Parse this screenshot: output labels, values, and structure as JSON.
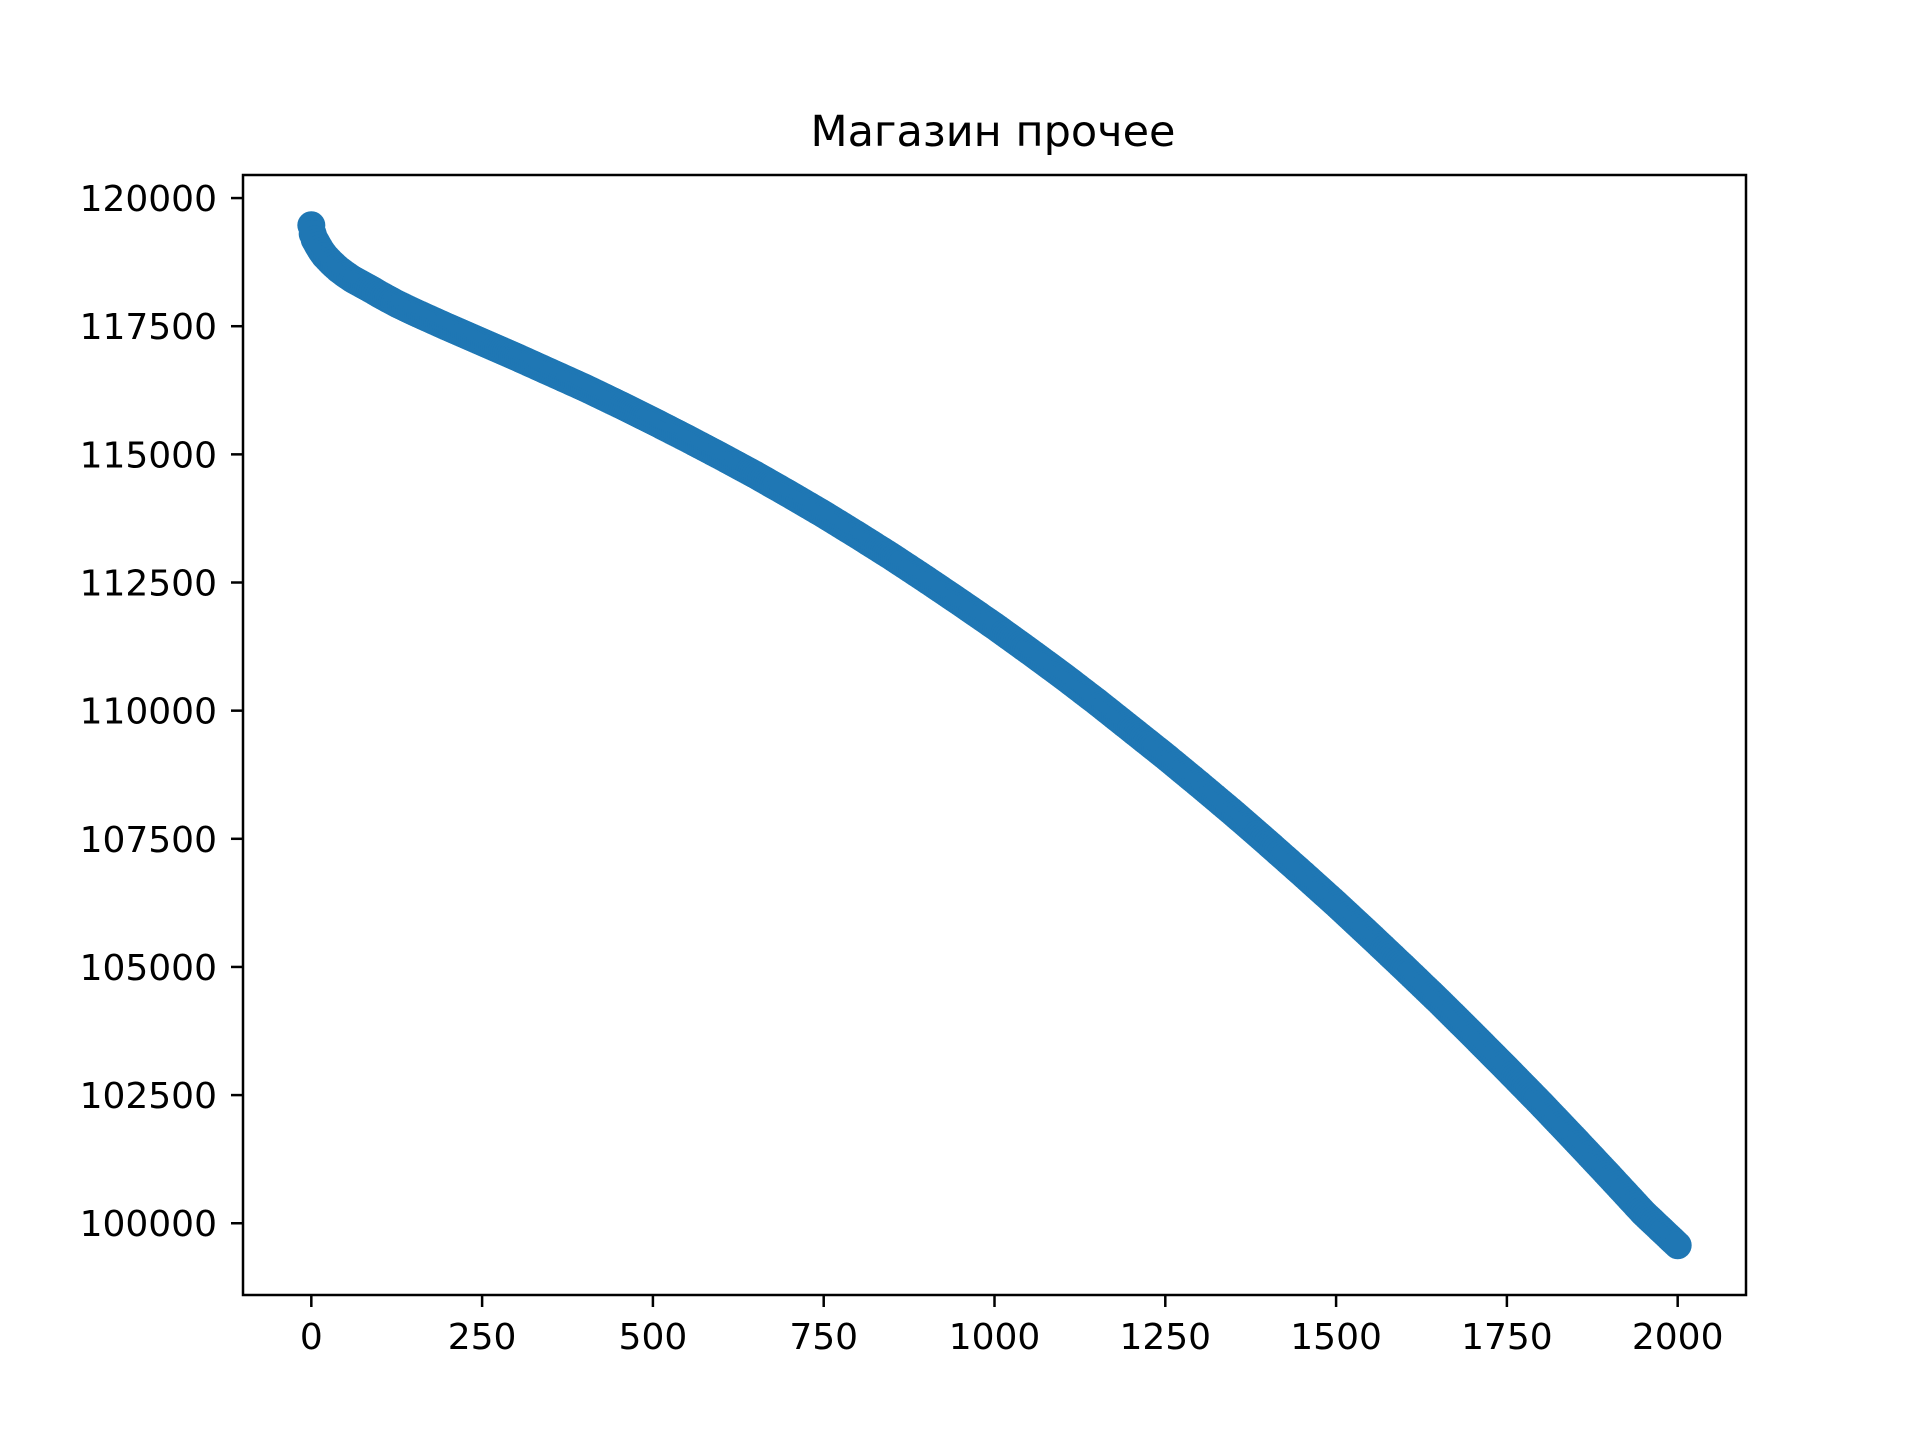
{
  "chart_data": {
    "type": "scatter",
    "title": "Магазин прочее",
    "xlabel": "",
    "ylabel": "",
    "xlim": [
      -100,
      2100
    ],
    "ylim": [
      98600,
      120450
    ],
    "x_ticks": [
      0,
      250,
      500,
      750,
      1000,
      1250,
      1500,
      1750,
      2000
    ],
    "y_ticks": [
      100000,
      102500,
      105000,
      107500,
      110000,
      112500,
      115000,
      117500,
      120000
    ],
    "x_tick_labels": [
      "0",
      "250",
      "500",
      "750",
      "1000",
      "1250",
      "1500",
      "1750",
      "2000"
    ],
    "y_tick_labels": [
      "100000",
      "102500",
      "105000",
      "107500",
      "110000",
      "112500",
      "115000",
      "117500",
      "120000"
    ],
    "grid": false,
    "marker_color": "#1f77b4",
    "series": [
      {
        "x": [
          0,
          2,
          5,
          10,
          15,
          20,
          30,
          40,
          50,
          60,
          75,
          90,
          100,
          125,
          150,
          175,
          200,
          250,
          300,
          350,
          400,
          450,
          500,
          550,
          600,
          650,
          700,
          750,
          800,
          850,
          900,
          950,
          1000,
          1050,
          1100,
          1150,
          1200,
          1250,
          1300,
          1350,
          1400,
          1450,
          1500,
          1550,
          1600,
          1650,
          1700,
          1750,
          1800,
          1850,
          1900,
          1950,
          2000
        ],
        "y": [
          119470,
          119300,
          119190,
          119070,
          118960,
          118870,
          118730,
          118610,
          118510,
          118420,
          118310,
          118200,
          118120,
          117940,
          117780,
          117630,
          117480,
          117190,
          116900,
          116600,
          116300,
          115980,
          115650,
          115310,
          114960,
          114600,
          114220,
          113830,
          113420,
          113000,
          112560,
          112110,
          111650,
          111170,
          110680,
          110170,
          109640,
          109110,
          108560,
          108000,
          107420,
          106830,
          106230,
          105610,
          104980,
          104340,
          103680,
          103010,
          102330,
          101630,
          100920,
          100200,
          99570
        ]
      }
    ]
  }
}
